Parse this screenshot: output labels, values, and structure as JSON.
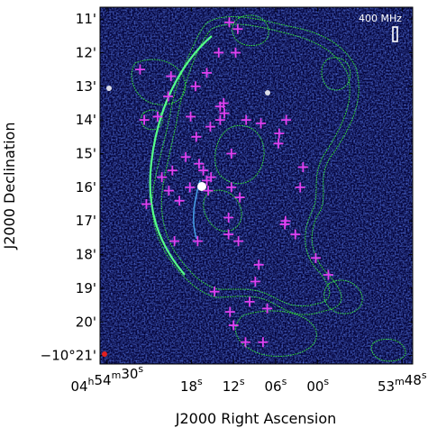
{
  "chart_data": {
    "type": "scatter",
    "title": "",
    "frequency_label": "400 MHz",
    "xlabel": "J2000 Right Ascension",
    "ylabel": "J2000 Declination",
    "x_ticks": [
      {
        "sec": 30,
        "label_main": "04",
        "sup1": "h",
        "mid": "54",
        "sup2": "m",
        "tail": "30",
        "sup3": "s"
      },
      {
        "sec": 18,
        "label_main": "18",
        "sup1": "s"
      },
      {
        "sec": 12,
        "label_main": "12",
        "sup1": "s"
      },
      {
        "sec": 6,
        "label_main": "06",
        "sup1": "s"
      },
      {
        "sec": 0,
        "label_main": "00",
        "sup1": "s"
      },
      {
        "sec": -12,
        "label_main": "53",
        "sup1": "m",
        "tail": "48",
        "sup3": "s"
      }
    ],
    "y_ticks": [
      {
        "arcmin": 11,
        "label": "11'"
      },
      {
        "arcmin": 12,
        "label": "12'"
      },
      {
        "arcmin": 13,
        "label": "13'"
      },
      {
        "arcmin": 14,
        "label": "14'"
      },
      {
        "arcmin": 15,
        "label": "15'"
      },
      {
        "arcmin": 16,
        "label": "16'"
      },
      {
        "arcmin": 17,
        "label": "17'"
      },
      {
        "arcmin": 18,
        "label": "18'"
      },
      {
        "arcmin": 19,
        "label": "19'"
      },
      {
        "arcmin": 20,
        "label": "20'"
      },
      {
        "arcmin": 21,
        "label": "−10°21'"
      }
    ],
    "x_range_sec": [
      31,
      -13.5
    ],
    "y_range_arcmin": [
      10.65,
      21.25
    ],
    "sources_ra_sec": [
      25.3,
      17.4,
      13.9,
      13.3,
      12.3,
      11.1,
      5.5,
      5.6,
      4.5,
      2.1,
      2.5,
      0.3,
      -1.5,
      4.7,
      17.1,
      14.7,
      12.5,
      12.0,
      10.3,
      7.2,
      7.8,
      4.6,
      3.2,
      8.4,
      8.9,
      9.7,
      24.7,
      21.3,
      22.8,
      20.9,
      18.1,
      15.8,
      15.3,
      14.1,
      11.7,
      11.4,
      10.2,
      8.1,
      22.2,
      21.2,
      24.4,
      19.7,
      20.7,
      18.8,
      17.3,
      16.9,
      15.8,
      15.2,
      15.6,
      13.9,
      13.4,
      12.3,
      20.4,
      18.2,
      12.7,
      12.7,
      11.3,
      16.3,
      12.6
    ],
    "sources_dec_arcmin": [
      12.5,
      13.0,
      14.0,
      13.8,
      16.0,
      16.3,
      14.4,
      14.7,
      14.0,
      15.4,
      16.0,
      18.1,
      18.6,
      17.1,
      17.6,
      19.1,
      19.7,
      20.1,
      20.6,
      19.6,
      20.6,
      17.0,
      17.4,
      18.3,
      18.8,
      19.4,
      14.0,
      13.3,
      13.9,
      12.7,
      13.9,
      12.6,
      14.2,
      12.0,
      12.0,
      11.3,
      14.0,
      14.1,
      15.7,
      16.1,
      16.5,
      16.4,
      15.5,
      15.1,
      14.5,
      15.3,
      15.8,
      15.7,
      16.1,
      13.6,
      13.5,
      15.0,
      17.6,
      16.0,
      16.9,
      17.4,
      17.6,
      15.5,
      11.1
    ],
    "marker": "plus",
    "colors": {
      "background": "#04043a",
      "marker": "#e040f0",
      "contour": "#33ee33",
      "arc": "#55ff88",
      "reference_dot": "#e02020",
      "frequency_box": "#ffffff"
    },
    "grid": false,
    "legend": "none"
  }
}
